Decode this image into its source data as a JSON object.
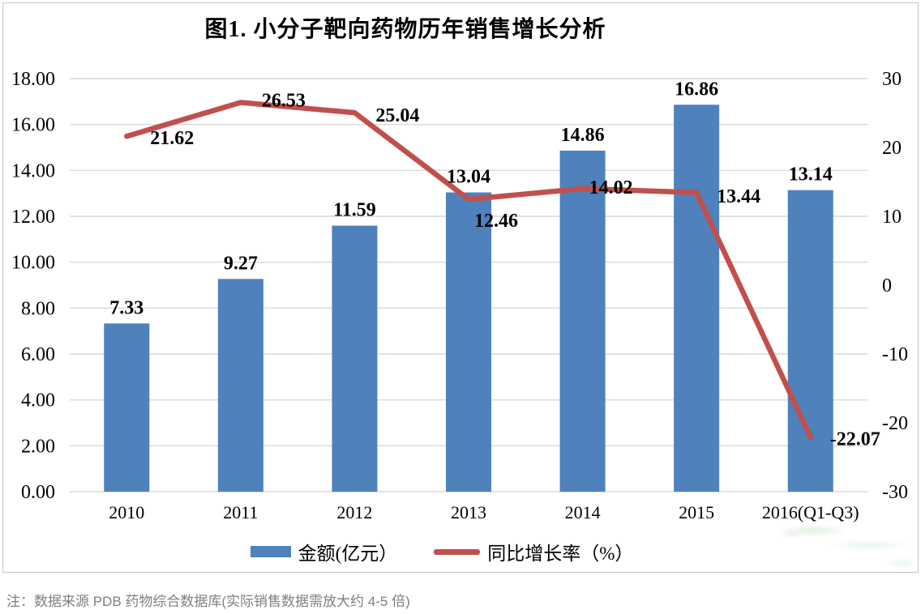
{
  "title": "图1. 小分子靶向药物历年销售增长分析",
  "footnote": "注：数据来源 PDB 药物综合数据库(实际销售数据需放大约 4-5 倍)",
  "colors": {
    "bar": "#4F81BD",
    "line": "#C0504D",
    "grid": "#D9D9D9",
    "axis_text": "#000000",
    "note_text": "#7F7F7F",
    "frame_border": "#C6C6C6"
  },
  "chart_data": {
    "type": "combo-bar-line",
    "title": "图1. 小分子靶向药物历年销售增长分析",
    "categories": [
      "2010",
      "2011",
      "2012",
      "2013",
      "2014",
      "2015",
      "2016(Q1-Q3)"
    ],
    "series": [
      {
        "name": "金额(亿元）",
        "type": "bar",
        "axis": "left",
        "color": "#4F81BD",
        "values": [
          7.33,
          9.27,
          11.59,
          13.04,
          14.86,
          16.86,
          13.14
        ]
      },
      {
        "name": "同比增长率（%）",
        "type": "line",
        "axis": "right",
        "color": "#C0504D",
        "values": [
          21.62,
          26.53,
          25.04,
          12.46,
          14.02,
          13.44,
          -22.07
        ],
        "label_offsets": [
          [
            56,
            2
          ],
          [
            53,
            -3
          ],
          [
            53,
            3
          ],
          [
            34,
            26
          ],
          [
            35,
            -2
          ],
          [
            52,
            4
          ],
          [
            55,
            2
          ]
        ]
      }
    ],
    "left_axis": {
      "min": 0,
      "max": 18,
      "ticks": [
        "0.00",
        "2.00",
        "4.00",
        "6.00",
        "8.00",
        "10.00",
        "12.00",
        "14.00",
        "16.00",
        "18.00"
      ]
    },
    "right_axis": {
      "min": -30,
      "max": 30,
      "ticks": [
        "-30",
        "-20",
        "-10",
        "0",
        "10",
        "20",
        "30"
      ]
    },
    "grid": true,
    "legend_position": "bottom",
    "xlabel": "",
    "ylabel_left": "金额(亿元）",
    "ylabel_right": "同比增长率（%）"
  }
}
